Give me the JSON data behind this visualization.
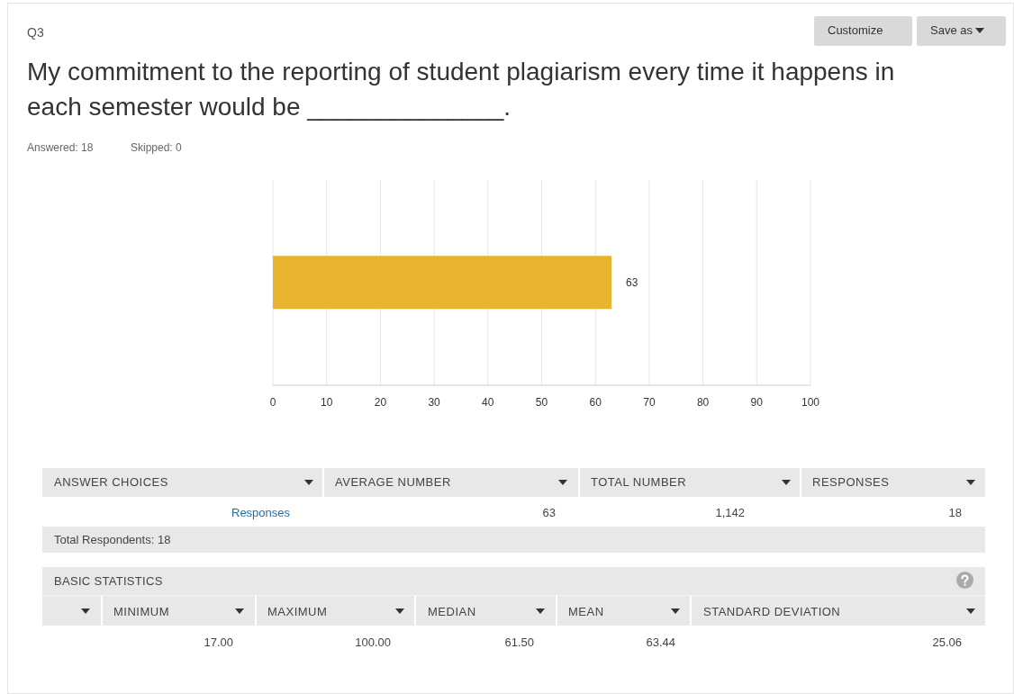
{
  "chart_data": {
    "type": "bar",
    "subtitle": "Q3",
    "title": "My commitment to the reporting of student plagiarism every time it happens in each semester would be ______________.",
    "orientation": "horizontal",
    "categories": [
      null
    ],
    "values": [
      63
    ],
    "color": "#e8b32e",
    "data_labels": true,
    "xlim": [
      0,
      100
    ],
    "xticks": [
      0,
      10,
      20,
      30,
      40,
      50,
      60,
      70,
      80,
      90,
      100
    ],
    "grid": "x",
    "tick_labels": "x",
    "annotations": [
      "Customize",
      "Save as",
      "Answered: 18",
      "Skipped: 0",
      "ANSWER CHOICES",
      "AVERAGE NUMBER",
      "TOTAL NUMBER",
      "RESPONSES",
      "Responses",
      "63",
      "1,142",
      "18",
      "Total Respondents: 18",
      "BASIC STATISTICS",
      "MINIMUM",
      "MAXIMUM",
      "MEDIAN",
      "MEAN",
      "STANDARD DEVIATION",
      "17.00",
      "100.00",
      "61.50",
      "63.44",
      "25.06"
    ]
  }
}
